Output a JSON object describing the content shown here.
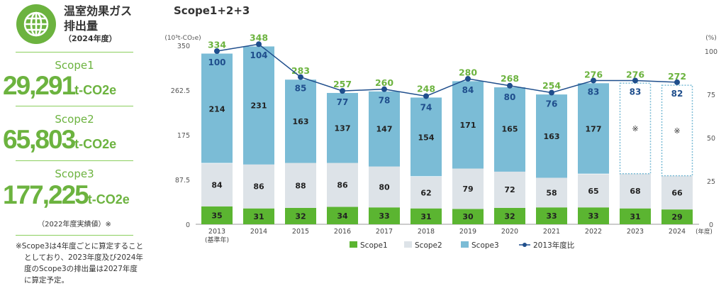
{
  "header": {
    "title_line1": "温室効果ガス",
    "title_line2": "排出量",
    "subtitle": "（2024年度）",
    "icon": "globe-icon"
  },
  "scopes": [
    {
      "label": "Scope1",
      "value": "29,291",
      "unit": "t-CO2e"
    },
    {
      "label": "Scope2",
      "value": "65,803",
      "unit": "t-CO2e"
    },
    {
      "label": "Scope3",
      "value": "177,225",
      "unit": "t-CO2e"
    }
  ],
  "scope3_note": "（2022年度実績値）※",
  "footnote": "※Scope3は4年度ごとに算定することとしており、2023年度及び2024年度のScope3の排出量は2027年度に算定予定。",
  "colors": {
    "green": "#6cb33f",
    "scope1": "#5bb531",
    "scope2": "#dde3e8",
    "scope3": "#7bbcd6",
    "line": "#1f4e8c"
  },
  "chart_data": {
    "type": "bar",
    "title": "Scope1+2+3",
    "ylabel": "(10³t-CO₂e)",
    "y2label": "(%)",
    "xunit": "(年度)",
    "ylim": [
      0,
      350
    ],
    "yticks": [
      "0",
      "87.5",
      "175",
      "262.5",
      "350"
    ],
    "y2lim": [
      0,
      100
    ],
    "y2ticks": [
      "0",
      "25",
      "50",
      "75",
      "100"
    ],
    "categories": [
      "2013",
      "2014",
      "2015",
      "2016",
      "2017",
      "2018",
      "2019",
      "2020",
      "2021",
      "2022",
      "2023",
      "2024"
    ],
    "category_sub": {
      "2013": "(基準年)"
    },
    "series": [
      {
        "name": "Scope1",
        "values": [
          35,
          31,
          32,
          34,
          33,
          31,
          30,
          32,
          33,
          33,
          31,
          29
        ]
      },
      {
        "name": "Scope2",
        "values": [
          84,
          86,
          88,
          86,
          80,
          62,
          79,
          72,
          58,
          65,
          68,
          66
        ]
      },
      {
        "name": "Scope3",
        "values": [
          214,
          231,
          163,
          137,
          147,
          154,
          171,
          165,
          163,
          177,
          null,
          null
        ],
        "placeholder_label": "※"
      },
      {
        "name": "2013年度比",
        "type": "line",
        "values": [
          100,
          104,
          85,
          77,
          78,
          74,
          84,
          80,
          76,
          83,
          83,
          82
        ]
      }
    ],
    "totals": [
      334,
      348,
      283,
      257,
      260,
      248,
      280,
      268,
      254,
      276,
      276,
      272
    ],
    "legend": [
      "Scope1",
      "Scope2",
      "Scope3",
      "2013年度比"
    ],
    "legend_position": "bottom"
  }
}
